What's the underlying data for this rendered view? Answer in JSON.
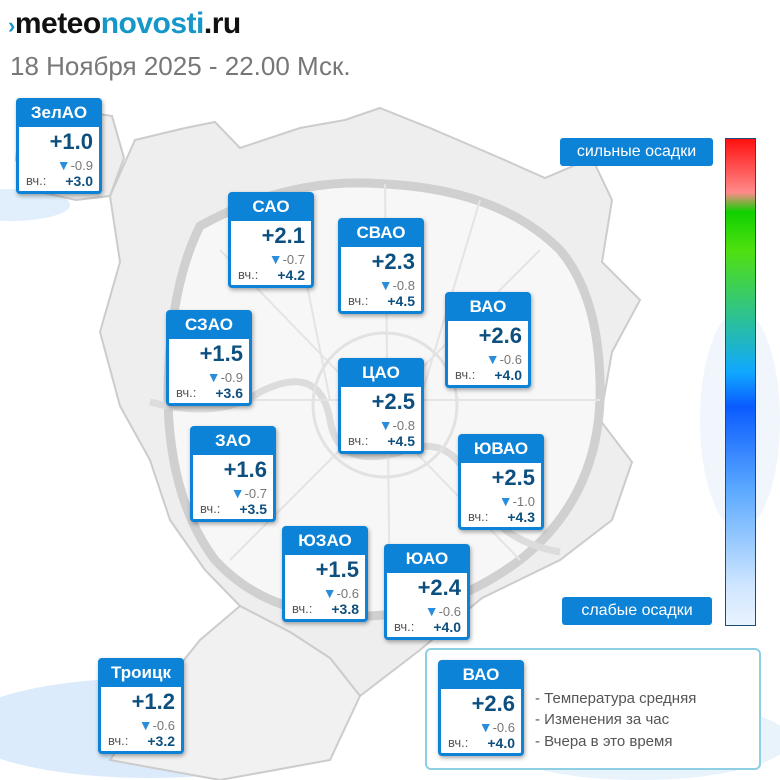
{
  "header": {
    "logo_mark": "›",
    "logo_part1": "meteo",
    "logo_part2": "novosti",
    "logo_part3": ".ru",
    "date": "18 Ноября 2025 - 22.00 Мск."
  },
  "yesterday_label": "вч.:",
  "change_icon": "triangle-down-icon",
  "districts": [
    {
      "id": "zelao",
      "name": "ЗелАО",
      "temp": "+1.0",
      "change": "-0.9",
      "yesterday": "+3.0"
    },
    {
      "id": "sao",
      "name": "САО",
      "temp": "+2.1",
      "change": "-0.7",
      "yesterday": "+4.2"
    },
    {
      "id": "svao",
      "name": "СВАО",
      "temp": "+2.3",
      "change": "-0.8",
      "yesterday": "+4.5"
    },
    {
      "id": "vao",
      "name": "ВАО",
      "temp": "+2.6",
      "change": "-0.6",
      "yesterday": "+4.0"
    },
    {
      "id": "szao",
      "name": "СЗАО",
      "temp": "+1.5",
      "change": "-0.9",
      "yesterday": "+3.6"
    },
    {
      "id": "cao",
      "name": "ЦАО",
      "temp": "+2.5",
      "change": "-0.8",
      "yesterday": "+4.5"
    },
    {
      "id": "zao",
      "name": "ЗАО",
      "temp": "+1.6",
      "change": "-0.7",
      "yesterday": "+3.5"
    },
    {
      "id": "yuvao",
      "name": "ЮВАО",
      "temp": "+2.5",
      "change": "-1.0",
      "yesterday": "+4.3"
    },
    {
      "id": "yuzao",
      "name": "ЮЗАО",
      "temp": "+1.5",
      "change": "-0.6",
      "yesterday": "+3.8"
    },
    {
      "id": "yuao",
      "name": "ЮАО",
      "temp": "+2.4",
      "change": "-0.6",
      "yesterday": "+4.0"
    },
    {
      "id": "troitsk",
      "name": "Троицк",
      "temp": "+1.2",
      "change": "-0.6",
      "yesterday": "+3.2"
    }
  ],
  "precip_scale": {
    "top_label": "сильные осадки",
    "bottom_label": "слабые осадки",
    "colors": [
      "#ff1010",
      "#ff8a8a",
      "#10d000",
      "#10a8ff",
      "#0a5bff",
      "#cfe6ff"
    ]
  },
  "legend": {
    "sample": {
      "name": "ВАО",
      "temp": "+2.6",
      "change": "-0.6",
      "yesterday": "+4.0"
    },
    "lines": [
      "- Температура средняя",
      "- Изменения за час",
      "- Вчера в это время"
    ]
  }
}
